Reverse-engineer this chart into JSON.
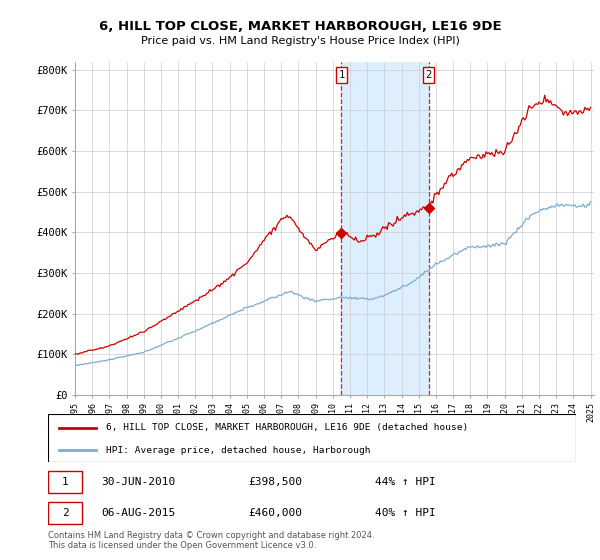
{
  "title": "6, HILL TOP CLOSE, MARKET HARBOROUGH, LE16 9DE",
  "subtitle": "Price paid vs. HM Land Registry's House Price Index (HPI)",
  "ylim": [
    0,
    820000
  ],
  "yticks": [
    0,
    100000,
    200000,
    300000,
    400000,
    500000,
    600000,
    700000,
    800000
  ],
  "ytick_labels": [
    "£0",
    "£100K",
    "£200K",
    "£300K",
    "£400K",
    "£500K",
    "£600K",
    "£700K",
    "£800K"
  ],
  "sale1_date": 2010.5,
  "sale1_price": 398500,
  "sale2_date": 2015.583,
  "sale2_price": 460000,
  "sale1_text": "30-JUN-2010",
  "sale1_price_text": "£398,500",
  "sale1_hpi_text": "44% ↑ HPI",
  "sale2_text": "06-AUG-2015",
  "sale2_price_text": "£460,000",
  "sale2_hpi_text": "40% ↑ HPI",
  "legend_house": "6, HILL TOP CLOSE, MARKET HARBOROUGH, LE16 9DE (detached house)",
  "legend_hpi": "HPI: Average price, detached house, Harborough",
  "footer": "Contains HM Land Registry data © Crown copyright and database right 2024.\nThis data is licensed under the Open Government Licence v3.0.",
  "house_color": "#cc0000",
  "hpi_color": "#7aadcf",
  "shade_color": "#ddeeff",
  "vline_color": "#cc0000",
  "sale_box_color": "#cc0000",
  "grid_color": "#cccccc",
  "bg_color": "#ffffff"
}
